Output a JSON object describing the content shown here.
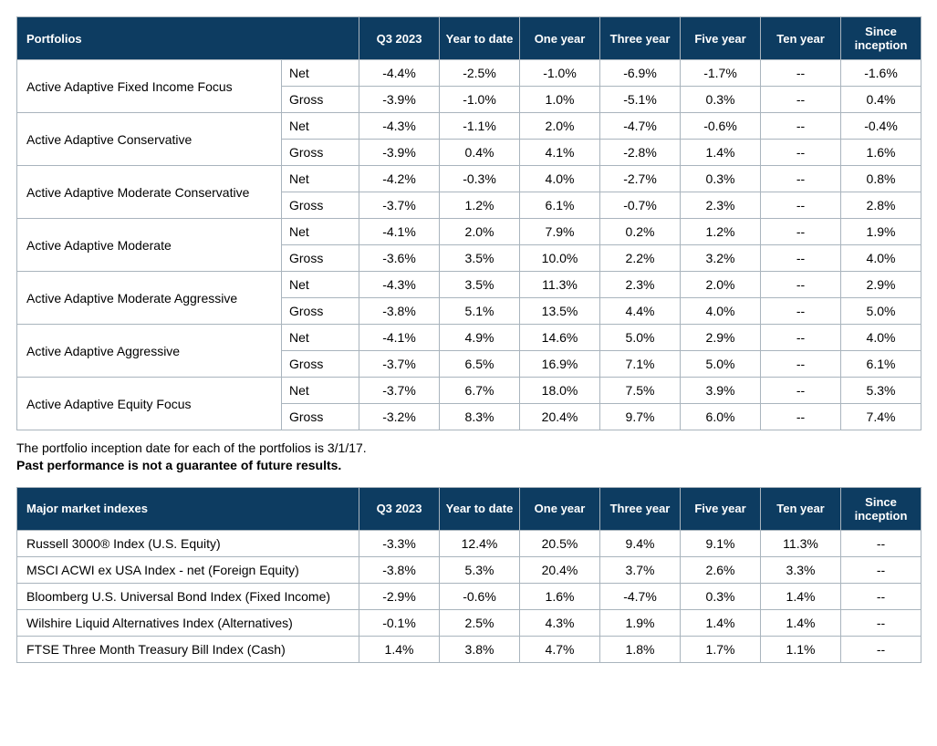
{
  "portfolios_table": {
    "headers": {
      "portfolios": "Portfolios",
      "q3": "Q3 2023",
      "ytd": "Year to date",
      "one": "One year",
      "three": "Three year",
      "five": "Five year",
      "ten": "Ten year",
      "since": "Since inception"
    },
    "type_labels": {
      "net": "Net",
      "gross": "Gross"
    },
    "rows": [
      {
        "name": "Active Adaptive Fixed Income Focus",
        "net": {
          "q3": "-4.4%",
          "ytd": "-2.5%",
          "one": "-1.0%",
          "three": "-6.9%",
          "five": "-1.7%",
          "ten": "--",
          "since": "-1.6%"
        },
        "gross": {
          "q3": "-3.9%",
          "ytd": "-1.0%",
          "one": "1.0%",
          "three": "-5.1%",
          "five": "0.3%",
          "ten": "--",
          "since": "0.4%"
        }
      },
      {
        "name": "Active Adaptive Conservative",
        "net": {
          "q3": "-4.3%",
          "ytd": "-1.1%",
          "one": "2.0%",
          "three": "-4.7%",
          "five": "-0.6%",
          "ten": "--",
          "since": "-0.4%"
        },
        "gross": {
          "q3": "-3.9%",
          "ytd": "0.4%",
          "one": "4.1%",
          "three": "-2.8%",
          "five": "1.4%",
          "ten": "--",
          "since": "1.6%"
        }
      },
      {
        "name": "Active Adaptive Moderate Conservative",
        "net": {
          "q3": "-4.2%",
          "ytd": "-0.3%",
          "one": "4.0%",
          "three": "-2.7%",
          "five": "0.3%",
          "ten": "--",
          "since": "0.8%"
        },
        "gross": {
          "q3": "-3.7%",
          "ytd": "1.2%",
          "one": "6.1%",
          "three": "-0.7%",
          "five": "2.3%",
          "ten": "--",
          "since": "2.8%"
        }
      },
      {
        "name": "Active Adaptive Moderate",
        "net": {
          "q3": "-4.1%",
          "ytd": "2.0%",
          "one": "7.9%",
          "three": "0.2%",
          "five": "1.2%",
          "ten": "--",
          "since": "1.9%"
        },
        "gross": {
          "q3": "-3.6%",
          "ytd": "3.5%",
          "one": "10.0%",
          "three": "2.2%",
          "five": "3.2%",
          "ten": "--",
          "since": "4.0%"
        }
      },
      {
        "name": "Active Adaptive Moderate Aggressive",
        "net": {
          "q3": "-4.3%",
          "ytd": "3.5%",
          "one": "11.3%",
          "three": "2.3%",
          "five": "2.0%",
          "ten": "--",
          "since": "2.9%"
        },
        "gross": {
          "q3": "-3.8%",
          "ytd": "5.1%",
          "one": "13.5%",
          "three": "4.4%",
          "five": "4.0%",
          "ten": "--",
          "since": "5.0%"
        }
      },
      {
        "name": "Active Adaptive Aggressive",
        "net": {
          "q3": "-4.1%",
          "ytd": "4.9%",
          "one": "14.6%",
          "three": "5.0%",
          "five": "2.9%",
          "ten": "--",
          "since": "4.0%"
        },
        "gross": {
          "q3": "-3.7%",
          "ytd": "6.5%",
          "one": "16.9%",
          "three": "7.1%",
          "five": "5.0%",
          "ten": "--",
          "since": "6.1%"
        }
      },
      {
        "name": "Active Adaptive Equity Focus",
        "net": {
          "q3": "-3.7%",
          "ytd": "6.7%",
          "one": "18.0%",
          "three": "7.5%",
          "five": "3.9%",
          "ten": "--",
          "since": "5.3%"
        },
        "gross": {
          "q3": "-3.2%",
          "ytd": "8.3%",
          "one": "20.4%",
          "three": "9.7%",
          "five": "6.0%",
          "ten": "--",
          "since": "7.4%"
        }
      }
    ]
  },
  "notes": {
    "line1": "The portfolio inception date for each of the portfolios is 3/1/17.",
    "line2": "Past performance is not a guarantee of future results."
  },
  "indexes_table": {
    "headers": {
      "indexes": "Major market indexes",
      "q3": "Q3 2023",
      "ytd": "Year to date",
      "one": "One year",
      "three": "Three year",
      "five": "Five year",
      "ten": "Ten year",
      "since": "Since inception"
    },
    "rows": [
      {
        "name": "Russell 3000® Index (U.S. Equity)",
        "q3": "-3.3%",
        "ytd": "12.4%",
        "one": "20.5%",
        "three": "9.4%",
        "five": "9.1%",
        "ten": "11.3%",
        "since": "--"
      },
      {
        "name": "MSCI ACWI ex USA Index - net (Foreign Equity)",
        "q3": "-3.8%",
        "ytd": "5.3%",
        "one": "20.4%",
        "three": "3.7%",
        "five": "2.6%",
        "ten": "3.3%",
        "since": "--"
      },
      {
        "name": "Bloomberg U.S. Universal Bond Index (Fixed Income)",
        "q3": "-2.9%",
        "ytd": "-0.6%",
        "one": "1.6%",
        "three": "-4.7%",
        "five": "0.3%",
        "ten": "1.4%",
        "since": "--"
      },
      {
        "name": "Wilshire Liquid Alternatives Index (Alternatives)",
        "q3": "-0.1%",
        "ytd": "2.5%",
        "one": "4.3%",
        "three": "1.9%",
        "five": "1.4%",
        "ten": "1.4%",
        "since": "--"
      },
      {
        "name": "FTSE Three Month Treasury Bill Index (Cash)",
        "q3": "1.4%",
        "ytd": "3.8%",
        "one": "4.7%",
        "three": "1.8%",
        "five": "1.7%",
        "ten": "1.1%",
        "since": "--"
      }
    ]
  }
}
